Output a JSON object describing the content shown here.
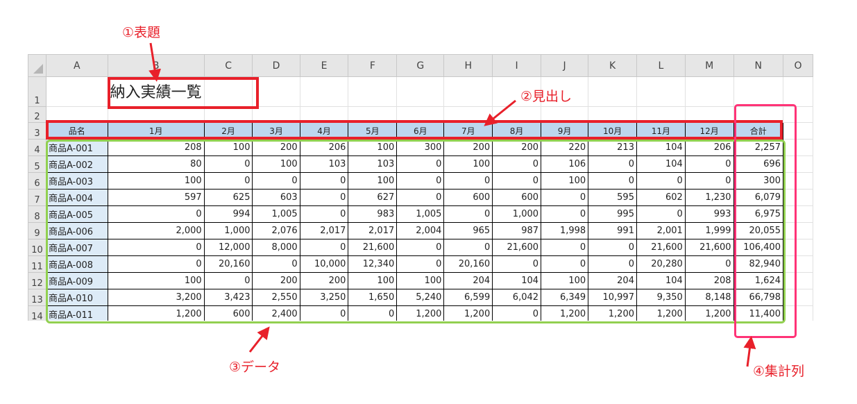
{
  "columns": [
    "A",
    "B",
    "C",
    "D",
    "E",
    "F",
    "G",
    "H",
    "I",
    "J",
    "K",
    "L",
    "M",
    "N",
    "O"
  ],
  "title": "納入実績一覧",
  "headers": [
    "品名",
    "1月",
    "2月",
    "3月",
    "4月",
    "5月",
    "6月",
    "7月",
    "8月",
    "9月",
    "10月",
    "11月",
    "12月",
    "合計"
  ],
  "rows": [
    {
      "row": "4",
      "cells": [
        "商品A-001",
        "208",
        "100",
        "200",
        "206",
        "100",
        "300",
        "200",
        "200",
        "220",
        "213",
        "104",
        "206",
        "2,257"
      ]
    },
    {
      "row": "5",
      "cells": [
        "商品A-002",
        "80",
        "0",
        "100",
        "103",
        "103",
        "0",
        "100",
        "0",
        "106",
        "0",
        "104",
        "0",
        "696"
      ]
    },
    {
      "row": "6",
      "cells": [
        "商品A-003",
        "100",
        "0",
        "0",
        "0",
        "100",
        "0",
        "0",
        "0",
        "100",
        "0",
        "0",
        "0",
        "300"
      ]
    },
    {
      "row": "7",
      "cells": [
        "商品A-004",
        "597",
        "625",
        "603",
        "0",
        "627",
        "0",
        "600",
        "600",
        "0",
        "595",
        "602",
        "1,230",
        "6,079"
      ]
    },
    {
      "row": "8",
      "cells": [
        "商品A-005",
        "0",
        "994",
        "1,005",
        "0",
        "983",
        "1,005",
        "0",
        "1,000",
        "0",
        "995",
        "0",
        "993",
        "6,975"
      ]
    },
    {
      "row": "9",
      "cells": [
        "商品A-006",
        "2,000",
        "1,000",
        "2,076",
        "2,017",
        "2,017",
        "2,004",
        "965",
        "987",
        "1,998",
        "991",
        "2,001",
        "1,999",
        "20,055"
      ]
    },
    {
      "row": "10",
      "cells": [
        "商品A-007",
        "0",
        "12,000",
        "8,000",
        "0",
        "21,600",
        "0",
        "0",
        "21,600",
        "0",
        "0",
        "21,600",
        "21,600",
        "106,400"
      ]
    },
    {
      "row": "11",
      "cells": [
        "商品A-008",
        "0",
        "20,160",
        "0",
        "10,000",
        "12,340",
        "0",
        "20,160",
        "0",
        "0",
        "0",
        "20,280",
        "0",
        "82,940"
      ]
    },
    {
      "row": "12",
      "cells": [
        "商品A-009",
        "100",
        "0",
        "200",
        "200",
        "100",
        "100",
        "204",
        "104",
        "100",
        "204",
        "104",
        "208",
        "1,624"
      ]
    },
    {
      "row": "13",
      "cells": [
        "商品A-010",
        "3,200",
        "3,423",
        "2,550",
        "3,250",
        "1,650",
        "5,240",
        "6,599",
        "6,042",
        "6,349",
        "10,997",
        "9,350",
        "8,148",
        "66,798"
      ]
    },
    {
      "row": "14",
      "cells": [
        "商品A-011",
        "1,200",
        "600",
        "2,400",
        "0",
        "0",
        "1,200",
        "1,200",
        "0",
        "1,200",
        "1,200",
        "1,200",
        "1,200",
        "11,400"
      ]
    }
  ],
  "annotations": {
    "title_label": "①表題",
    "header_label": "②見出し",
    "data_label": "③データ",
    "total_label": "④集計列"
  },
  "colors": {
    "header_fill": "#bdd7ee",
    "name_fill": "#ddebf7",
    "title_box": "#e8202a",
    "data_box": "#92d050",
    "total_box": "#ff3377"
  }
}
